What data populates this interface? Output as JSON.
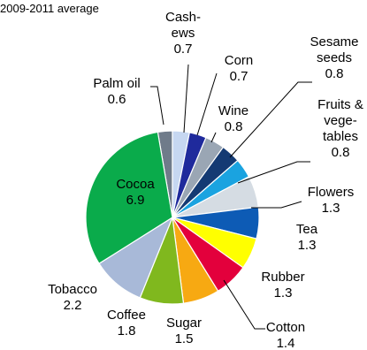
{
  "chart_data": {
    "type": "pie",
    "subtitle": "2009-2011 average",
    "slices": [
      {
        "label": "Palm oil",
        "lines": [
          "Palm oil",
          "0.6"
        ],
        "value": 0.6,
        "color": "#6f7b8a"
      },
      {
        "label": "Cashews",
        "lines": [
          "Cash-",
          "ews",
          "0.7"
        ],
        "value": 0.7,
        "color": "#c6d7f1"
      },
      {
        "label": "Corn",
        "lines": [
          "Corn",
          "0.7"
        ],
        "value": 0.7,
        "color": "#1f2a9c"
      },
      {
        "label": "Wine",
        "lines": [
          "Wine",
          "0.8"
        ],
        "value": 0.8,
        "color": "#9aa6b4"
      },
      {
        "label": "Sesame seeds",
        "lines": [
          "Sesame",
          "seeds",
          "0.8"
        ],
        "value": 0.8,
        "color": "#143a73"
      },
      {
        "label": "Fruits & vegetables",
        "lines": [
          "Fruits &",
          "vege-",
          "tables",
          "0.8"
        ],
        "value": 0.8,
        "color": "#1aa3e0"
      },
      {
        "label": "Flowers",
        "lines": [
          "Flowers",
          "1.3"
        ],
        "value": 1.3,
        "color": "#d5dce3"
      },
      {
        "label": "Tea",
        "lines": [
          "Tea",
          "1.3"
        ],
        "value": 1.3,
        "color": "#0d5bb5"
      },
      {
        "label": "Rubber",
        "lines": [
          "Rubber",
          "1.3"
        ],
        "value": 1.3,
        "color": "#ffff00"
      },
      {
        "label": "Cotton",
        "lines": [
          "Cotton",
          "1.4"
        ],
        "value": 1.4,
        "color": "#e3003c"
      },
      {
        "label": "Sugar",
        "lines": [
          "Sugar",
          "1.5"
        ],
        "value": 1.5,
        "color": "#f7a912"
      },
      {
        "label": "Coffee",
        "lines": [
          "Coffee",
          "1.8"
        ],
        "value": 1.8,
        "color": "#80b81e"
      },
      {
        "label": "Tobacco",
        "lines": [
          "Tobacco",
          "2.2"
        ],
        "value": 2.2,
        "color": "#a8b9d8"
      },
      {
        "label": "Cocoa",
        "lines": [
          "Cocoa",
          "6.9"
        ],
        "value": 6.9,
        "color": "#0aab4b"
      }
    ]
  }
}
